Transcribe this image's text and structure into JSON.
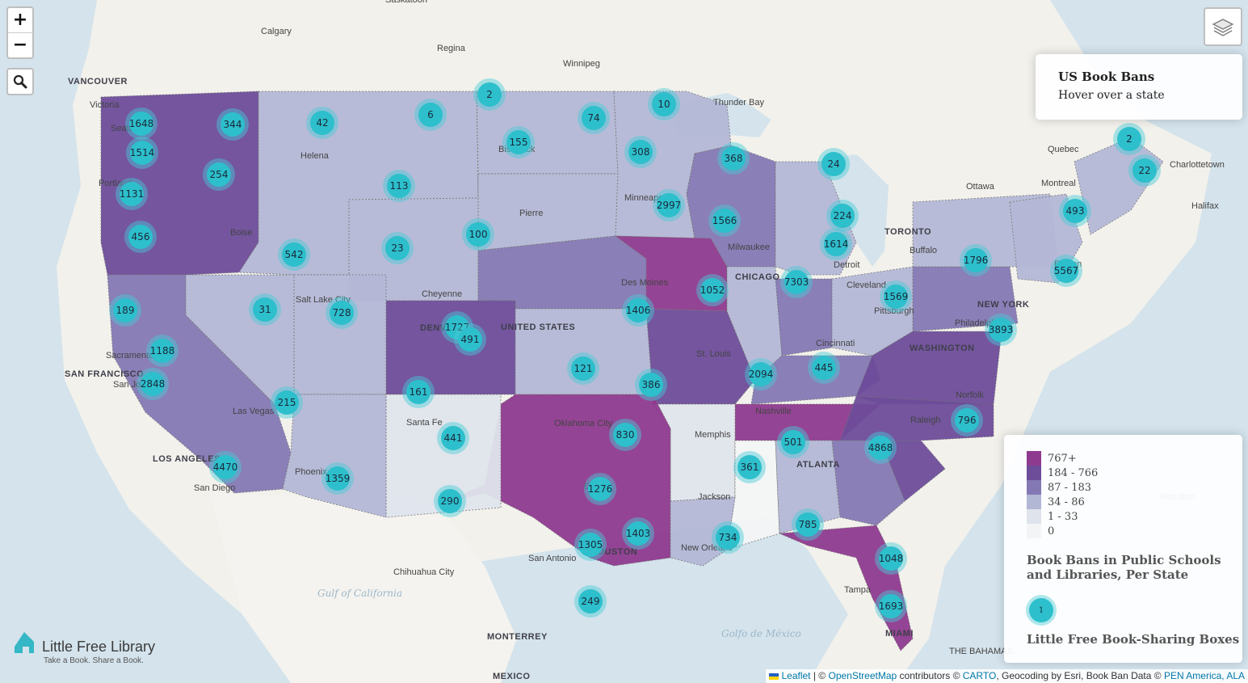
{
  "info": {
    "title": "US Book Bans",
    "subtitle": "Hover over a state"
  },
  "zoom": {
    "in": "+",
    "out": "−"
  },
  "legend": {
    "classes": [
      {
        "label": "767+",
        "color": "#8e3a8f"
      },
      {
        "label": "184 - 766",
        "color": "#6d4c9a"
      },
      {
        "label": "87 - 183",
        "color": "#8478b4"
      },
      {
        "label": "34 - 86",
        "color": "#b3b7d6"
      },
      {
        "label": "1 - 33",
        "color": "#dfe4ec"
      },
      {
        "label": "0",
        "color": "#f3f4f6"
      }
    ],
    "choropleth_title": "Book Bans in Public Schools and Libraries, Per State",
    "cluster_sample": "1",
    "cluster_title": "Little Free Book-Sharing Boxes"
  },
  "logo": {
    "name": "Little Free Library",
    "tagline": "Take a Book. Share a Book."
  },
  "attribution": {
    "leaflet": "Leaflet",
    "sep1": " | © ",
    "osm": "OpenStreetMap",
    "mid": " contributors © ",
    "carto": "CARTO",
    "mid2": ", Geocoding by Esri, Book Ban Data © ",
    "pen": "PEN America, ALA"
  },
  "places": [
    {
      "name": "Saskatoon"
    },
    {
      "name": "Calgary"
    },
    {
      "name": "Regina"
    },
    {
      "name": "Winnipeg"
    },
    {
      "name": "VANCOUVER"
    },
    {
      "name": "Victoria"
    },
    {
      "name": "Seattle"
    },
    {
      "name": "Portland"
    },
    {
      "name": "Boise"
    },
    {
      "name": "Helena"
    },
    {
      "name": "Bismarck"
    },
    {
      "name": "Thunder Bay"
    },
    {
      "name": "Pierre"
    },
    {
      "name": "Minneapolis"
    },
    {
      "name": "Milwaukee"
    },
    {
      "name": "CHICAGO"
    },
    {
      "name": "Detroit"
    },
    {
      "name": "TORONTO"
    },
    {
      "name": "Quebec"
    },
    {
      "name": "Charlottetown"
    },
    {
      "name": "Ottawa"
    },
    {
      "name": "Montreal"
    },
    {
      "name": "Halifax"
    },
    {
      "name": "Buffalo"
    },
    {
      "name": "Boston"
    },
    {
      "name": "Cleveland"
    },
    {
      "name": "Pittsburgh"
    },
    {
      "name": "NEW YORK"
    },
    {
      "name": "Philadelphia"
    },
    {
      "name": "WASHINGTON"
    },
    {
      "name": "Cincinnati"
    },
    {
      "name": "Des Moines"
    },
    {
      "name": "St. Louis"
    },
    {
      "name": "Salt Lake City"
    },
    {
      "name": "Cheyenne"
    },
    {
      "name": "DENVER"
    },
    {
      "name": "UNITED STATES"
    },
    {
      "name": "Sacramento"
    },
    {
      "name": "SAN FRANCISCO"
    },
    {
      "name": "San Jose"
    },
    {
      "name": "Las Vegas"
    },
    {
      "name": "LOS ANGELES"
    },
    {
      "name": "San Diego"
    },
    {
      "name": "Phoenix"
    },
    {
      "name": "Santa Fe"
    },
    {
      "name": "Oklahoma City"
    },
    {
      "name": "Memphis"
    },
    {
      "name": "Nashville"
    },
    {
      "name": "Norfolk"
    },
    {
      "name": "Raleigh"
    },
    {
      "name": "ATLANTA"
    },
    {
      "name": "Dallas"
    },
    {
      "name": "Jackson"
    },
    {
      "name": "New Orleans"
    },
    {
      "name": "HOUSTON"
    },
    {
      "name": "San Antonio"
    },
    {
      "name": "Tampa"
    },
    {
      "name": "MIAMI"
    },
    {
      "name": "Chihuahua City"
    },
    {
      "name": "MONTERREY"
    },
    {
      "name": "MEXICO"
    },
    {
      "name": "Hamilton"
    },
    {
      "name": "THE BAHAMAS"
    },
    {
      "name": "Gulf of California"
    },
    {
      "name": "Golfo de México"
    }
  ],
  "clusters": [
    {
      "count": "2"
    },
    {
      "count": "1648"
    },
    {
      "count": "344"
    },
    {
      "count": "42"
    },
    {
      "count": "6"
    },
    {
      "count": "74"
    },
    {
      "count": "10"
    },
    {
      "count": "1514"
    },
    {
      "count": "155"
    },
    {
      "count": "308"
    },
    {
      "count": "368"
    },
    {
      "count": "24"
    },
    {
      "count": "2"
    },
    {
      "count": "22"
    },
    {
      "count": "254"
    },
    {
      "count": "1131"
    },
    {
      "count": "113"
    },
    {
      "count": "2997"
    },
    {
      "count": "224"
    },
    {
      "count": "1566"
    },
    {
      "count": "493"
    },
    {
      "count": "456"
    },
    {
      "count": "100"
    },
    {
      "count": "1614"
    },
    {
      "count": "1796"
    },
    {
      "count": "542"
    },
    {
      "count": "23"
    },
    {
      "count": "5567"
    },
    {
      "count": "7303"
    },
    {
      "count": "1052"
    },
    {
      "count": "1569"
    },
    {
      "count": "189"
    },
    {
      "count": "31"
    },
    {
      "count": "728"
    },
    {
      "count": "1406"
    },
    {
      "count": "1727"
    },
    {
      "count": "491"
    },
    {
      "count": "3893"
    },
    {
      "count": "1188"
    },
    {
      "count": "121"
    },
    {
      "count": "2094"
    },
    {
      "count": "445"
    },
    {
      "count": "2848"
    },
    {
      "count": "161"
    },
    {
      "count": "386"
    },
    {
      "count": "215"
    },
    {
      "count": "441"
    },
    {
      "count": "830"
    },
    {
      "count": "501"
    },
    {
      "count": "4868"
    },
    {
      "count": "796"
    },
    {
      "count": "361"
    },
    {
      "count": "4470"
    },
    {
      "count": "1359"
    },
    {
      "count": "1276"
    },
    {
      "count": "290"
    },
    {
      "count": "785"
    },
    {
      "count": "1403"
    },
    {
      "count": "1305"
    },
    {
      "count": "734"
    },
    {
      "count": "1048"
    },
    {
      "count": "249"
    },
    {
      "count": "1693"
    }
  ]
}
